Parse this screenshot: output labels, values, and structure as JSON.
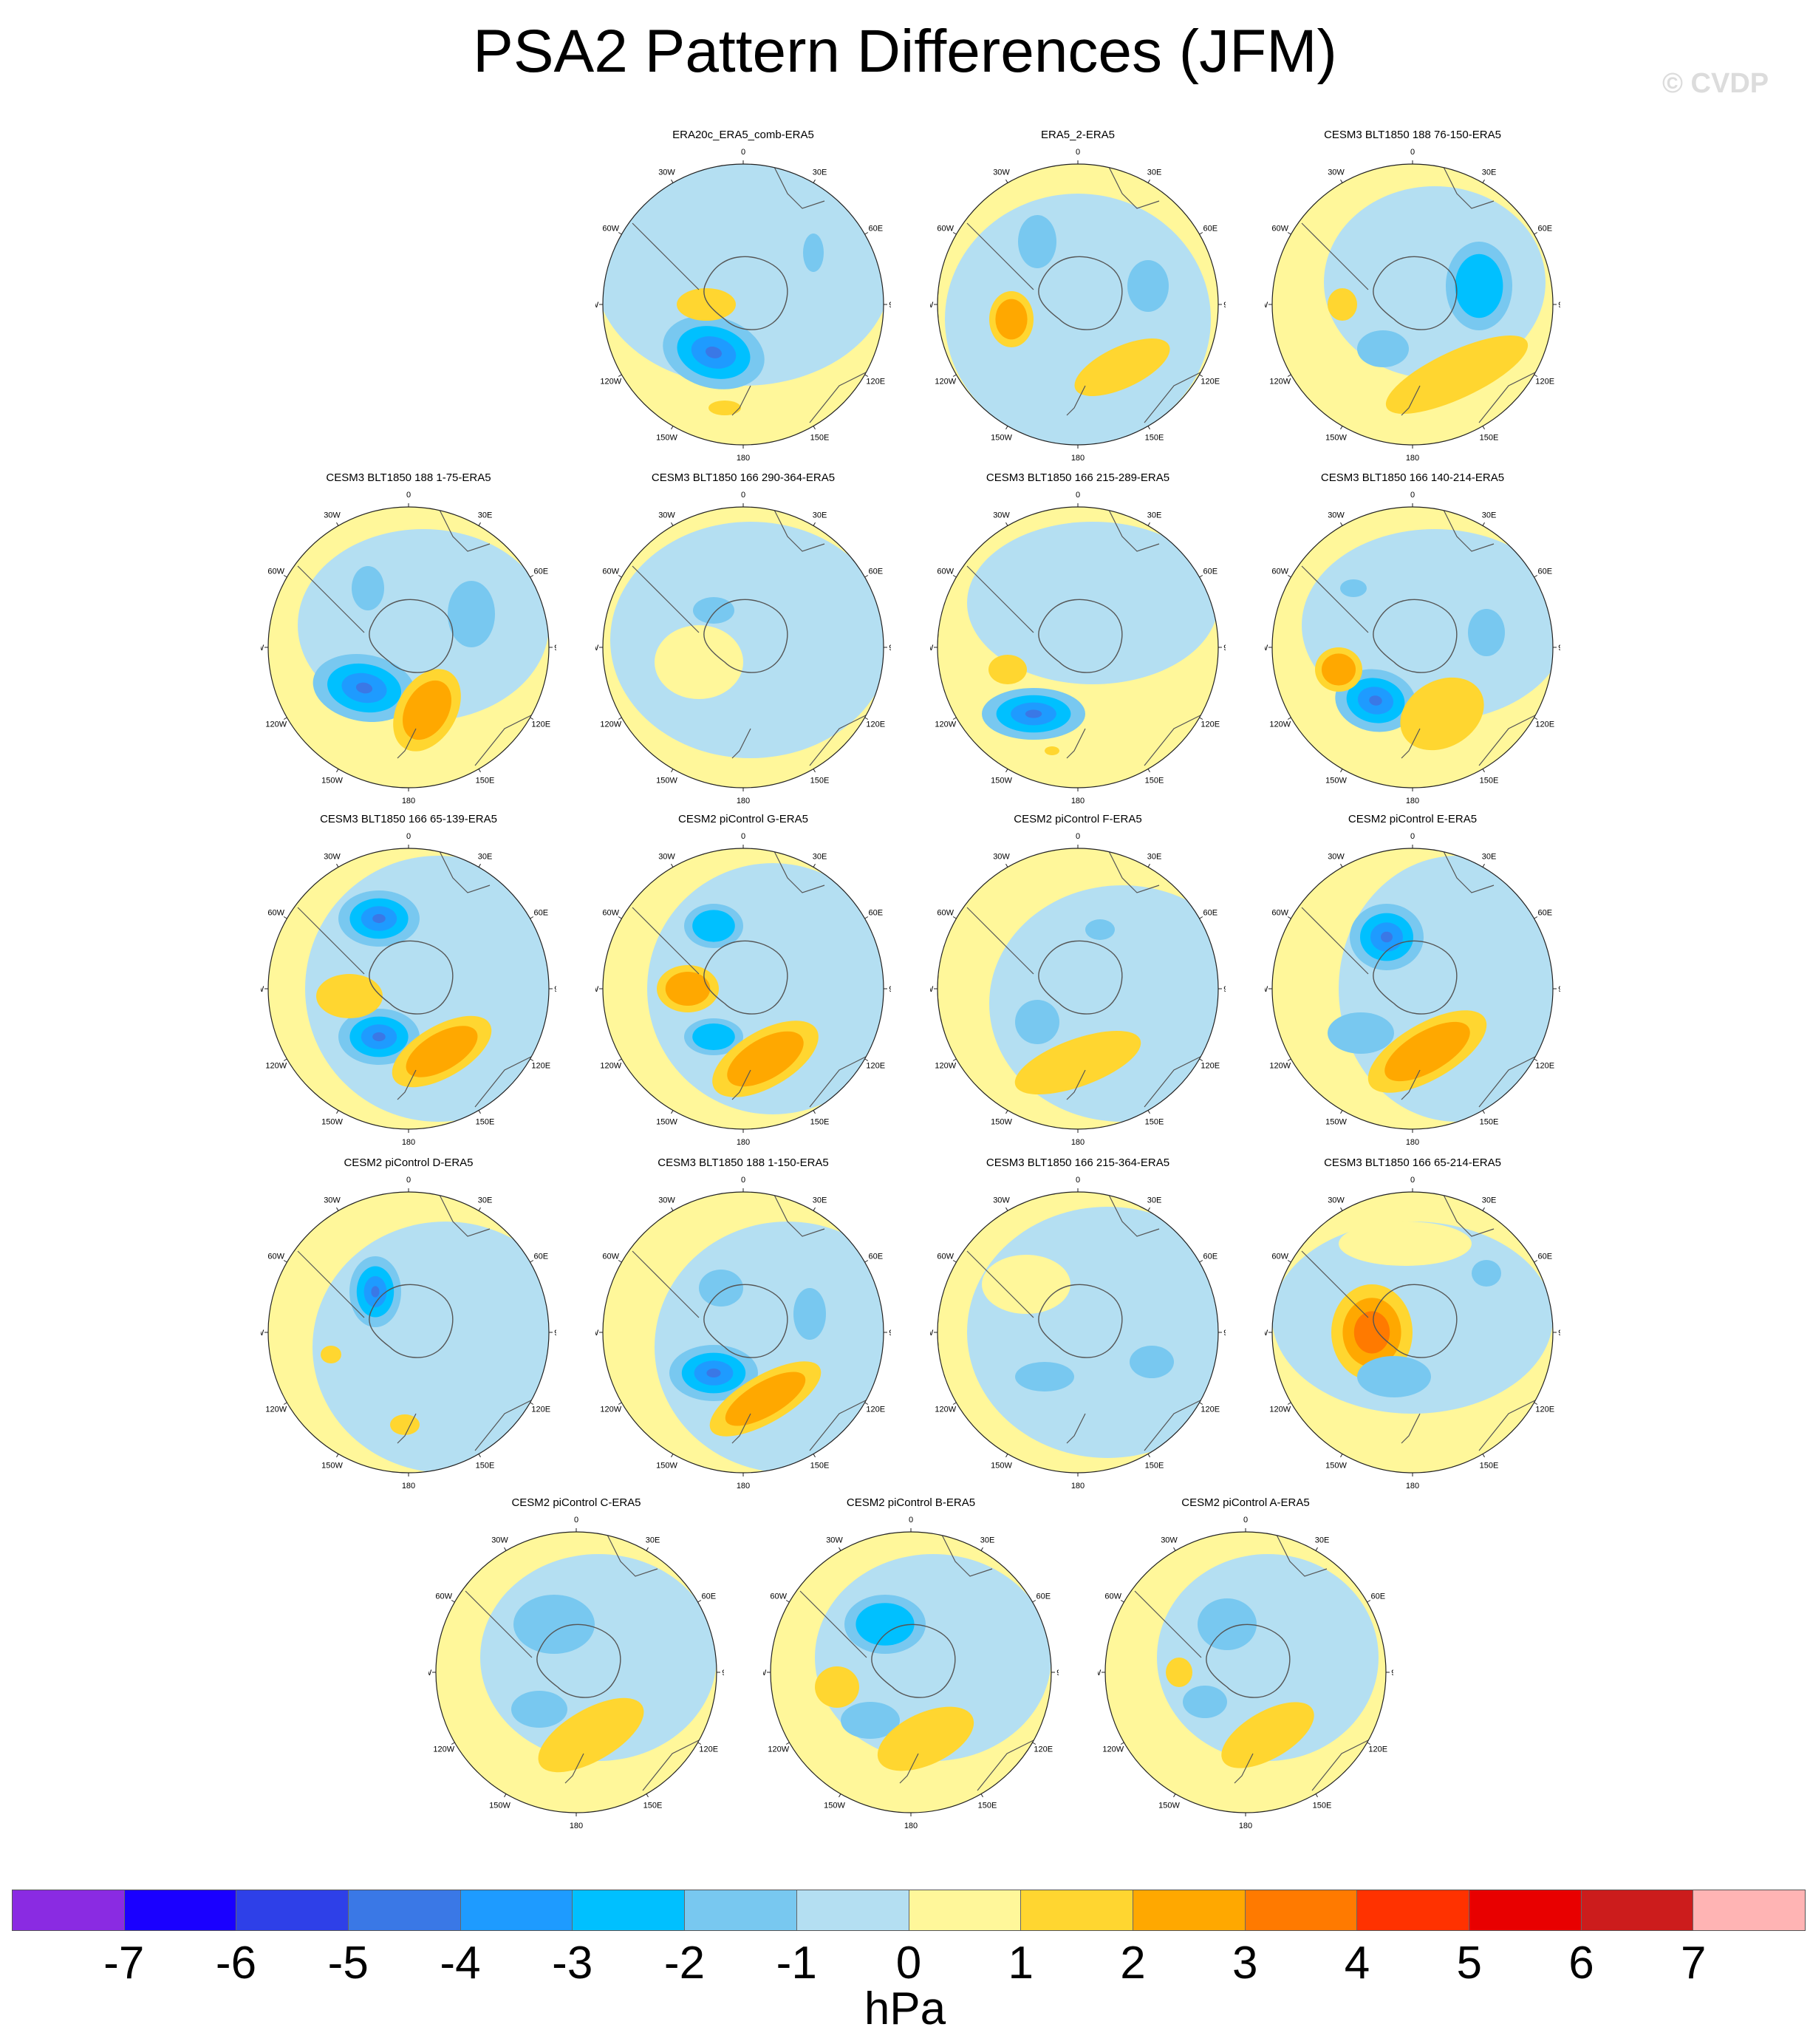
{
  "figure": {
    "title": "PSA2 Pattern Differences (JFM)",
    "watermark": "© CVDP"
  },
  "map_labels": {
    "top": "0",
    "ne1": "30E",
    "ne2": "60E",
    "east": "90E",
    "se1": "120E",
    "se2": "150E",
    "bottom": "180",
    "sw2": "150W",
    "sw1": "120W",
    "west": "90W",
    "nw2": "60W",
    "nw1": "30W"
  },
  "panels": [
    {
      "title": "ERA20c_ERA5_comb-ERA5",
      "row": 0,
      "col": 1
    },
    {
      "title": "ERA5_2-ERA5",
      "row": 0,
      "col": 2
    },
    {
      "title": "CESM3 BLT1850 188 76-150-ERA5",
      "row": 0,
      "col": 3
    },
    {
      "title": "CESM3 BLT1850 188 1-75-ERA5",
      "row": 1,
      "col": 0
    },
    {
      "title": "CESM3 BLT1850 166 290-364-ERA5",
      "row": 1,
      "col": 1
    },
    {
      "title": "CESM3 BLT1850 166 215-289-ERA5",
      "row": 1,
      "col": 2
    },
    {
      "title": "CESM3 BLT1850 166 140-214-ERA5",
      "row": 1,
      "col": 3
    },
    {
      "title": "CESM3 BLT1850 166 65-139-ERA5",
      "row": 2,
      "col": 0
    },
    {
      "title": "CESM2 piControl G-ERA5",
      "row": 2,
      "col": 1
    },
    {
      "title": "CESM2 piControl F-ERA5",
      "row": 2,
      "col": 2
    },
    {
      "title": "CESM2 piControl E-ERA5",
      "row": 2,
      "col": 3
    },
    {
      "title": "CESM2 piControl D-ERA5",
      "row": 3,
      "col": 0
    },
    {
      "title": "CESM3 BLT1850 188 1-150-ERA5",
      "row": 3,
      "col": 1
    },
    {
      "title": "CESM3 BLT1850 166 215-364-ERA5",
      "row": 3,
      "col": 2
    },
    {
      "title": "CESM3 BLT1850 166 65-214-ERA5",
      "row": 3,
      "col": 3
    },
    {
      "title": "CESM2 piControl C-ERA5",
      "row": 4,
      "col": 0.5
    },
    {
      "title": "CESM2 piControl B-ERA5",
      "row": 4,
      "col": 1.5
    },
    {
      "title": "CESM2 piControl A-ERA5",
      "row": 4,
      "col": 2.5
    }
  ],
  "colorbar": {
    "units": "hPa",
    "ticks": [
      "-7",
      "-6",
      "-5",
      "-4",
      "-3",
      "-2",
      "-1",
      "0",
      "1",
      "2",
      "3",
      "4",
      "5",
      "6",
      "7"
    ],
    "colors": [
      "#8a2be2",
      "#1a00ff",
      "#2e40e8",
      "#3a78e6",
      "#1e9bff",
      "#00c0ff",
      "#78c8f0",
      "#b4dff2",
      "#fff79a",
      "#ffd630",
      "#ffa800",
      "#ff7a00",
      "#ff3200",
      "#e80000",
      "#cc1c1c",
      "#ffb4b4"
    ]
  }
}
